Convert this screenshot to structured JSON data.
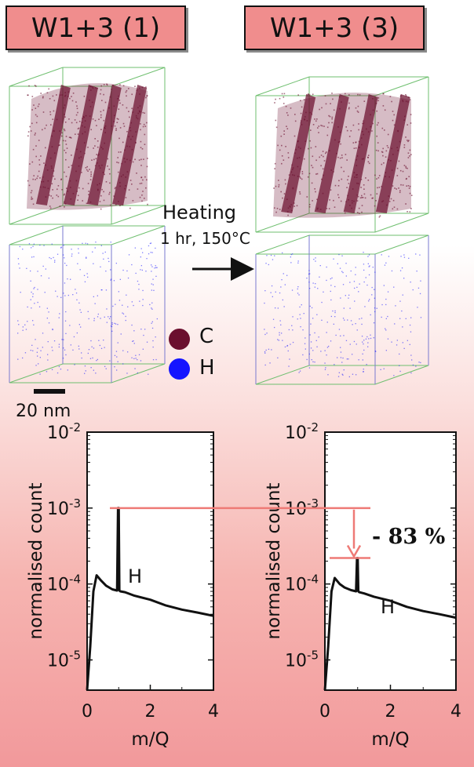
{
  "panels": {
    "left_label": "W1+3 (1)",
    "right_label": "W1+3 (3)"
  },
  "heating": {
    "line1": "Heating",
    "line2": "1 hr, 150°C"
  },
  "legend": [
    {
      "label": "C",
      "color": "#6b0f2e"
    },
    {
      "label": "H",
      "color": "#1414ff"
    }
  ],
  "scale_bar": "20 nm",
  "annotation": {
    "text": "- 83 %",
    "color": "#ee7a76"
  },
  "chart_data": [
    {
      "type": "line",
      "xlabel": "m/Q",
      "ylabel": "normalised count",
      "xlim": [
        0,
        4
      ],
      "ylim": [
        4e-06,
        0.01
      ],
      "yscale": "log",
      "xticks": [
        "0",
        "2",
        "4"
      ],
      "yticks": [
        "10-5",
        "10-4",
        "10-3",
        "10-2"
      ],
      "peak_label": "H",
      "series": [
        {
          "x": [
            0.0,
            0.1,
            0.2,
            0.3,
            0.45,
            0.6,
            0.8,
            0.95,
            0.98,
            1.0,
            1.02,
            1.05,
            1.2,
            1.5,
            2.0,
            2.5,
            3.0,
            3.5,
            4.0
          ],
          "y": [
            4e-06,
            1.5e-05,
            8e-05,
            0.00013,
            0.00011,
            9.5e-05,
            8.5e-05,
            8.2e-05,
            0.001,
            0.001,
            8.2e-05,
            8e-05,
            7.8e-05,
            7e-05,
            6.2e-05,
            5.2e-05,
            4.6e-05,
            4.2e-05,
            3.8e-05
          ]
        }
      ]
    },
    {
      "type": "line",
      "xlabel": "m/Q",
      "ylabel": "normalised count",
      "xlim": [
        0,
        4
      ],
      "ylim": [
        4e-06,
        0.01
      ],
      "yscale": "log",
      "xticks": [
        "0",
        "2",
        "4"
      ],
      "yticks": [
        "10-5",
        "10-4",
        "10-3",
        "10-2"
      ],
      "peak_label": "H",
      "series": [
        {
          "x": [
            0.0,
            0.1,
            0.2,
            0.3,
            0.45,
            0.6,
            0.8,
            0.95,
            0.98,
            1.0,
            1.02,
            1.05,
            1.2,
            1.5,
            2.0,
            2.5,
            3.0,
            3.5,
            4.0
          ],
          "y": [
            4e-06,
            1.5e-05,
            8e-05,
            0.00012,
            0.0001,
            9e-05,
            8.3e-05,
            8e-05,
            0.00022,
            0.00022,
            8e-05,
            7.8e-05,
            7.5e-05,
            6.8e-05,
            6e-05,
            5e-05,
            4.4e-05,
            4e-05,
            3.6e-05
          ]
        }
      ]
    }
  ]
}
